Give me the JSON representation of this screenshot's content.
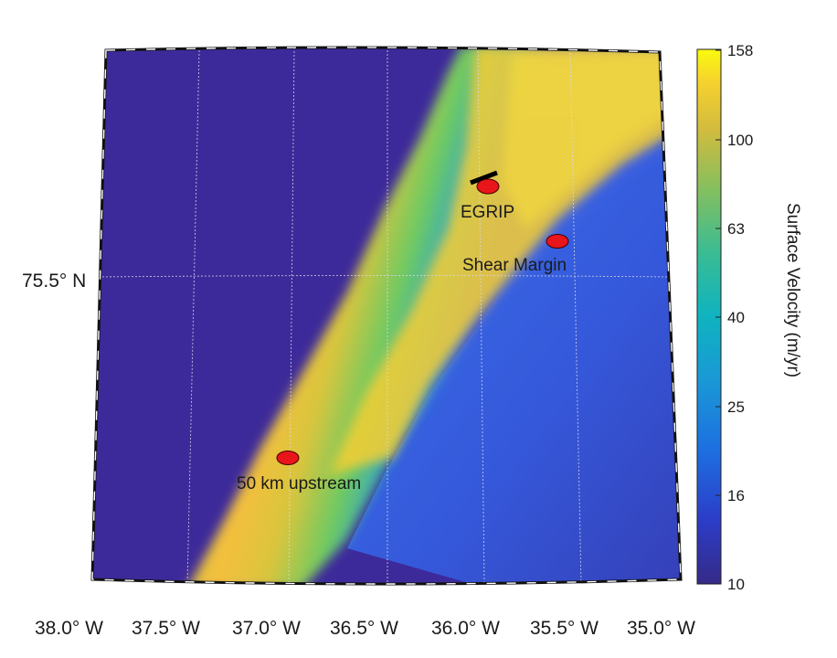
{
  "map": {
    "lat_label": "75.5° N",
    "lon_labels": [
      "38.0° W",
      "37.5° W",
      "37.0° W",
      "36.5° W",
      "36.0° W",
      "35.5° W",
      "35.0° W"
    ],
    "sites": [
      {
        "name": "EGRIP"
      },
      {
        "name": "Shear Margin"
      },
      {
        "name": "50 km upstream"
      }
    ],
    "colors": {
      "slow_ice": "#3d2a9a",
      "fast_ice": "#f7cf32",
      "marker": "#e8151b"
    }
  },
  "colorbar": {
    "title": "Surface Velocity (m/yr)",
    "ticks": [
      "158",
      "100",
      "63",
      "40",
      "25",
      "16",
      "10"
    ],
    "colormap": "parula",
    "scale": "log"
  }
}
